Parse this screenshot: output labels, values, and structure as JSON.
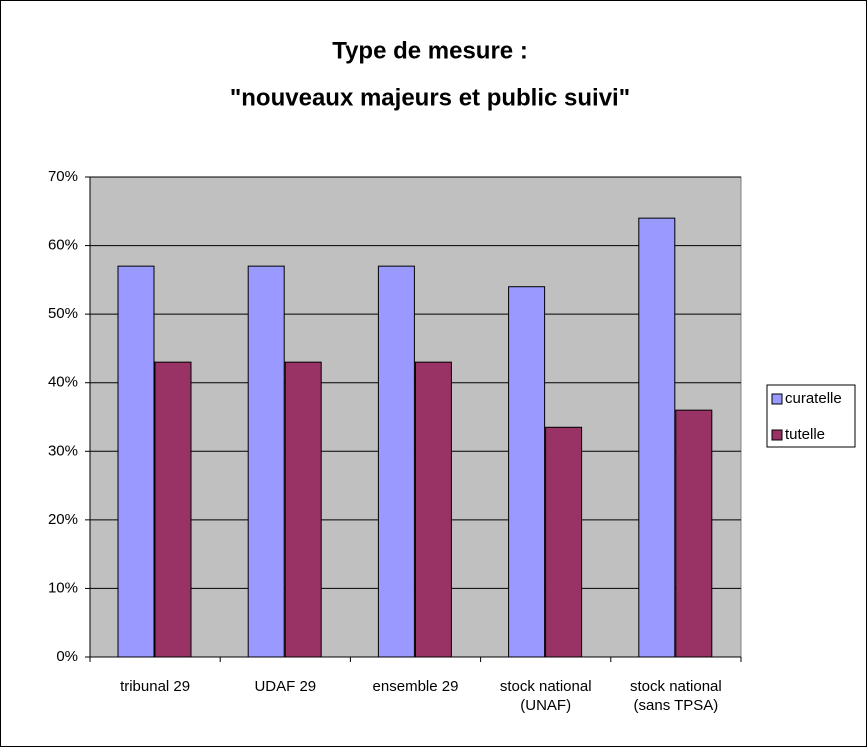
{
  "chart_data": {
    "type": "bar",
    "title": [
      "Type de mesure :",
      "\"nouveaux majeurs et public suivi\""
    ],
    "categories": [
      "tribunal 29",
      "UDAF 29",
      "ensemble 29",
      "stock national (UNAF)",
      "stock national (sans TPSA)"
    ],
    "series": [
      {
        "name": "curatelle",
        "color": "#9999ff",
        "values": [
          57,
          57,
          57,
          54,
          64
        ]
      },
      {
        "name": "tutelle",
        "color": "#993366",
        "values": [
          43,
          43,
          43,
          33.5,
          36
        ]
      }
    ],
    "ylim": [
      0,
      70
    ],
    "yticks": [
      {
        "value": 0,
        "label": "0%"
      },
      {
        "value": 10,
        "label": "10%"
      },
      {
        "value": 20,
        "label": "20%"
      },
      {
        "value": 30,
        "label": "30%"
      },
      {
        "value": 40,
        "label": "40%"
      },
      {
        "value": 50,
        "label": "50%"
      },
      {
        "value": 60,
        "label": "60%"
      },
      {
        "value": 70,
        "label": "70%"
      }
    ],
    "grid": true,
    "plot_background": "#c0c0c0",
    "legend": "right"
  }
}
